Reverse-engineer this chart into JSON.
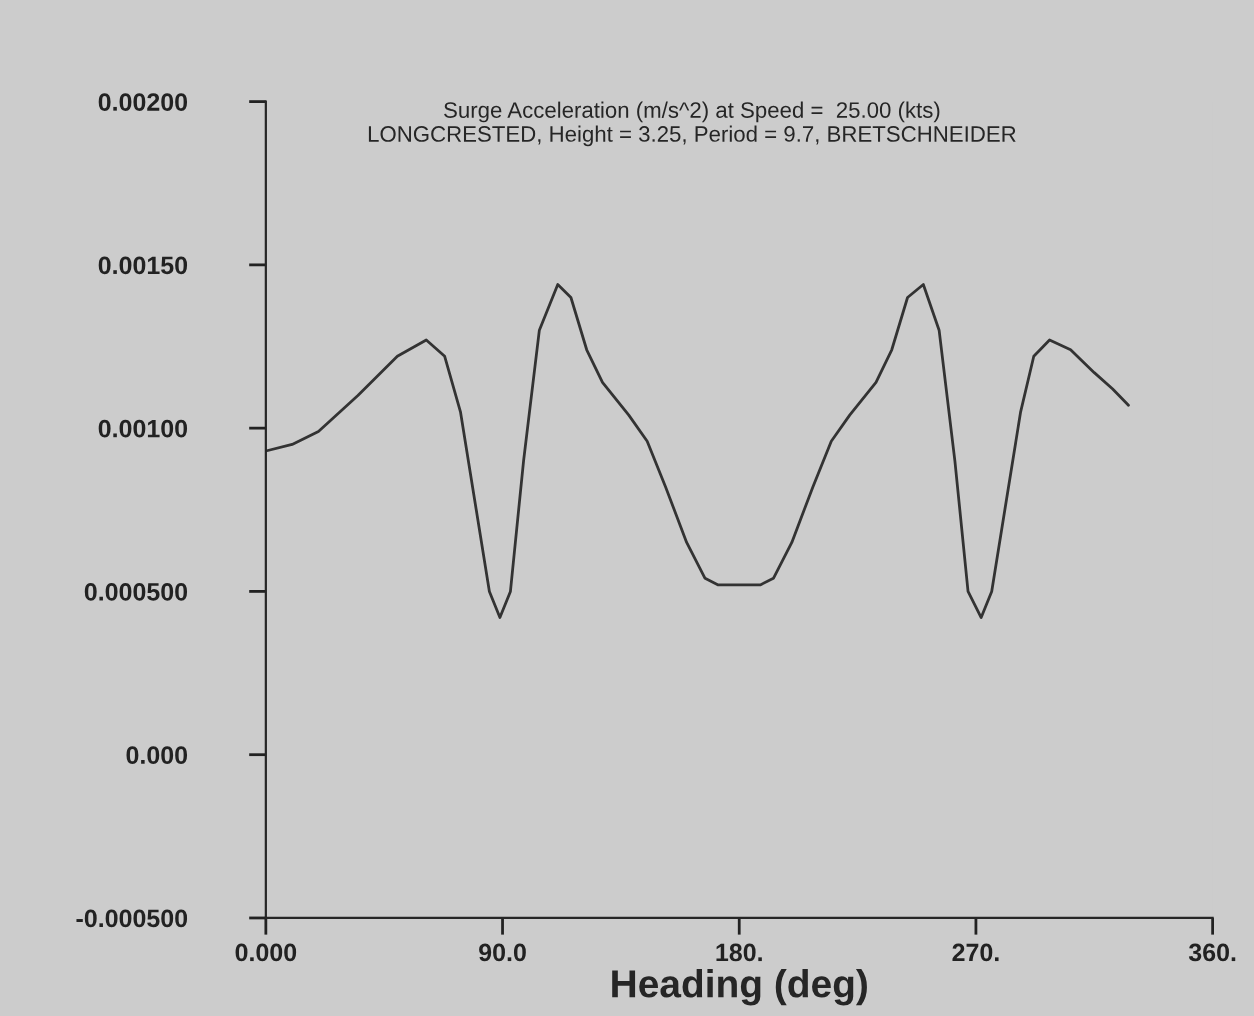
{
  "chart_data": {
    "type": "line",
    "title": "Surge Acceleration (m/s^2) at Speed =  25.00 (kts)\nLONGCRESTED, Height = 3.25, Period = 9.7, BRETSCHNEIDER",
    "xlabel": "Heading (deg)",
    "x": [
      0,
      10,
      20,
      35,
      50,
      61,
      68,
      74,
      80,
      85,
      89,
      93,
      98,
      104,
      111,
      116,
      122,
      128,
      138,
      145,
      152,
      160,
      167,
      172,
      180,
      188,
      193,
      200,
      208,
      215,
      222,
      232,
      238,
      244,
      250,
      256,
      262,
      267,
      272,
      276,
      281,
      287,
      292,
      298,
      306,
      315,
      322,
      328
    ],
    "series": [
      {
        "color": "#333333",
        "values": [
          0.00093,
          0.00095,
          0.00099,
          0.0011,
          0.00122,
          0.00127,
          0.00122,
          0.00105,
          0.00075,
          0.0005,
          0.00042,
          0.0005,
          0.0009,
          0.0013,
          0.00144,
          0.0014,
          0.00124,
          0.00114,
          0.00104,
          0.00096,
          0.00082,
          0.00065,
          0.00054,
          0.00052,
          0.00052,
          0.00052,
          0.00054,
          0.00065,
          0.00082,
          0.00096,
          0.00104,
          0.00114,
          0.00124,
          0.0014,
          0.00144,
          0.0013,
          0.0009,
          0.0005,
          0.00042,
          0.0005,
          0.00075,
          0.00105,
          0.00122,
          0.00127,
          0.00124,
          0.00117,
          0.00112,
          0.00107
        ]
      }
    ],
    "xlim": [
      0,
      360
    ],
    "xticks": [
      {
        "value": 0,
        "label": "0.000"
      },
      {
        "value": 90,
        "label": "90.0"
      },
      {
        "value": 180,
        "label": "180."
      },
      {
        "value": 270,
        "label": "270."
      },
      {
        "value": 360,
        "label": "360."
      }
    ],
    "ylim": [
      -0.0005,
      0.002
    ],
    "yticks": [
      {
        "value": -0.0005,
        "label": "-0.000500"
      },
      {
        "value": 0,
        "label": "0.000"
      },
      {
        "value": 0.0005,
        "label": "0.000500"
      },
      {
        "value": 0.001,
        "label": "0.00100"
      },
      {
        "value": 0.0015,
        "label": "0.00150"
      },
      {
        "value": 0.002,
        "label": "0.00200"
      }
    ],
    "legend": false,
    "marker": "none",
    "line_style": "solid"
  }
}
